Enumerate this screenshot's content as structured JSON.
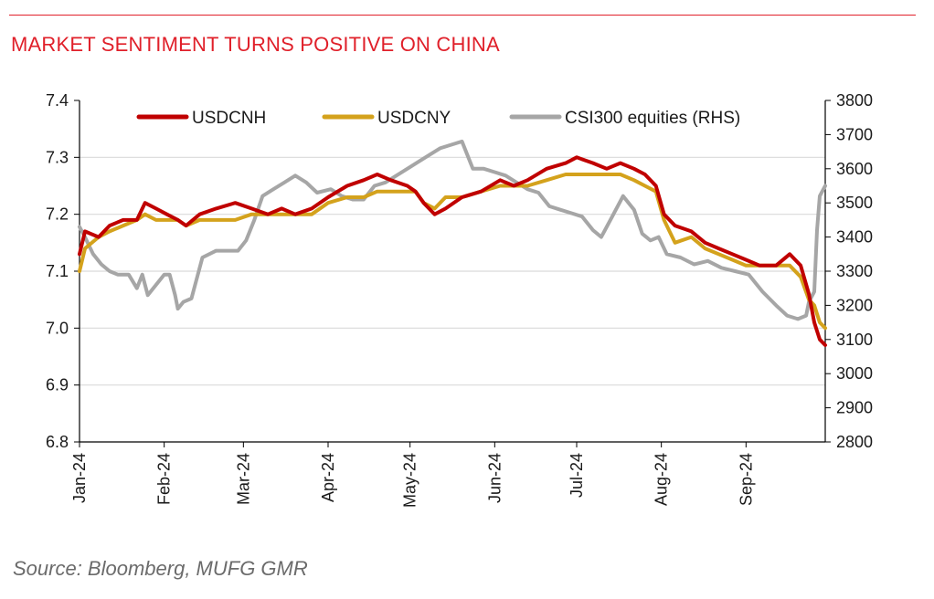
{
  "header": {
    "title": "MARKET SENTIMENT TURNS POSITIVE ON CHINA"
  },
  "footer": {
    "source": "Source: Bloomberg, MUFG GMR"
  },
  "colors": {
    "accent": "#e0202a",
    "usdcnh": "#c00000",
    "usdcny": "#d4a21c",
    "csi300": "#a6a6a6",
    "grid": "#d9d9d9"
  },
  "chart_data": {
    "type": "line",
    "title": "MARKET SENTIMENT TURNS POSITIVE ON CHINA",
    "xlabel": "",
    "ylabel": "",
    "ylim": [
      6.8,
      7.4
    ],
    "y2lim": [
      2800,
      3800
    ],
    "xlim": [
      "2024-01-01",
      "2024-09-30"
    ],
    "legend_position": "top",
    "grid": true,
    "x_tick_labels": [
      "Jan-24",
      "Feb-24",
      "Mar-24",
      "Apr-24",
      "May-24",
      "Jun-24",
      "Jul-24",
      "Aug-24",
      "Sep-24"
    ],
    "x_ticks": [
      "2024-01-01",
      "2024-02-01",
      "2024-03-01",
      "2024-04-01",
      "2024-05-01",
      "2024-06-01",
      "2024-07-01",
      "2024-08-01",
      "2024-09-01"
    ],
    "y_tick_labels": [
      "7.4",
      "7.3",
      "7.2",
      "7.1",
      "7.0",
      "6.9",
      "6.8"
    ],
    "y2_tick_labels": [
      "3800",
      "3700",
      "3600",
      "3500",
      "3400",
      "3300",
      "3200",
      "3100",
      "3000",
      "2900",
      "2800"
    ],
    "series": [
      {
        "name": "USDCNH",
        "axis": "left",
        "color": "#c00000",
        "points": [
          [
            "2024-01-01",
            7.13
          ],
          [
            "2024-01-03",
            7.17
          ],
          [
            "2024-01-08",
            7.16
          ],
          [
            "2024-01-12",
            7.18
          ],
          [
            "2024-01-17",
            7.19
          ],
          [
            "2024-01-22",
            7.19
          ],
          [
            "2024-01-25",
            7.22
          ],
          [
            "2024-01-29",
            7.21
          ],
          [
            "2024-02-02",
            7.2
          ],
          [
            "2024-02-06",
            7.19
          ],
          [
            "2024-02-09",
            7.18
          ],
          [
            "2024-02-14",
            7.2
          ],
          [
            "2024-02-20",
            7.21
          ],
          [
            "2024-02-27",
            7.22
          ],
          [
            "2024-03-04",
            7.21
          ],
          [
            "2024-03-10",
            7.2
          ],
          [
            "2024-03-15",
            7.21
          ],
          [
            "2024-03-20",
            7.2
          ],
          [
            "2024-03-26",
            7.21
          ],
          [
            "2024-04-01",
            7.23
          ],
          [
            "2024-04-08",
            7.25
          ],
          [
            "2024-04-14",
            7.26
          ],
          [
            "2024-04-19",
            7.27
          ],
          [
            "2024-04-24",
            7.26
          ],
          [
            "2024-04-30",
            7.25
          ],
          [
            "2024-05-03",
            7.24
          ],
          [
            "2024-05-06",
            7.22
          ],
          [
            "2024-05-10",
            7.2
          ],
          [
            "2024-05-14",
            7.21
          ],
          [
            "2024-05-20",
            7.23
          ],
          [
            "2024-05-27",
            7.24
          ],
          [
            "2024-06-03",
            7.26
          ],
          [
            "2024-06-08",
            7.25
          ],
          [
            "2024-06-13",
            7.26
          ],
          [
            "2024-06-20",
            7.28
          ],
          [
            "2024-06-27",
            7.29
          ],
          [
            "2024-07-01",
            7.3
          ],
          [
            "2024-07-07",
            7.29
          ],
          [
            "2024-07-12",
            7.28
          ],
          [
            "2024-07-17",
            7.29
          ],
          [
            "2024-07-22",
            7.28
          ],
          [
            "2024-07-26",
            7.27
          ],
          [
            "2024-07-30",
            7.25
          ],
          [
            "2024-08-02",
            7.2
          ],
          [
            "2024-08-06",
            7.18
          ],
          [
            "2024-08-12",
            7.17
          ],
          [
            "2024-08-17",
            7.15
          ],
          [
            "2024-08-22",
            7.14
          ],
          [
            "2024-08-27",
            7.13
          ],
          [
            "2024-09-01",
            7.12
          ],
          [
            "2024-09-06",
            7.11
          ],
          [
            "2024-09-12",
            7.11
          ],
          [
            "2024-09-17",
            7.13
          ],
          [
            "2024-09-21",
            7.11
          ],
          [
            "2024-09-24",
            7.06
          ],
          [
            "2024-09-26",
            7.01
          ],
          [
            "2024-09-28",
            6.98
          ],
          [
            "2024-09-30",
            6.97
          ]
        ]
      },
      {
        "name": "USDCNY",
        "axis": "left",
        "color": "#d4a21c",
        "points": [
          [
            "2024-01-01",
            7.1
          ],
          [
            "2024-01-03",
            7.14
          ],
          [
            "2024-01-08",
            7.16
          ],
          [
            "2024-01-12",
            7.17
          ],
          [
            "2024-01-17",
            7.18
          ],
          [
            "2024-01-22",
            7.19
          ],
          [
            "2024-01-25",
            7.2
          ],
          [
            "2024-01-29",
            7.19
          ],
          [
            "2024-02-02",
            7.19
          ],
          [
            "2024-02-06",
            7.19
          ],
          [
            "2024-02-09",
            7.18
          ],
          [
            "2024-02-14",
            7.19
          ],
          [
            "2024-02-20",
            7.19
          ],
          [
            "2024-02-27",
            7.19
          ],
          [
            "2024-03-04",
            7.2
          ],
          [
            "2024-03-10",
            7.2
          ],
          [
            "2024-03-15",
            7.2
          ],
          [
            "2024-03-20",
            7.2
          ],
          [
            "2024-03-26",
            7.2
          ],
          [
            "2024-04-01",
            7.22
          ],
          [
            "2024-04-08",
            7.23
          ],
          [
            "2024-04-14",
            7.23
          ],
          [
            "2024-04-19",
            7.24
          ],
          [
            "2024-04-24",
            7.24
          ],
          [
            "2024-04-30",
            7.24
          ],
          [
            "2024-05-03",
            7.24
          ],
          [
            "2024-05-06",
            7.22
          ],
          [
            "2024-05-10",
            7.21
          ],
          [
            "2024-05-14",
            7.23
          ],
          [
            "2024-05-20",
            7.23
          ],
          [
            "2024-05-27",
            7.24
          ],
          [
            "2024-06-03",
            7.25
          ],
          [
            "2024-06-08",
            7.25
          ],
          [
            "2024-06-13",
            7.25
          ],
          [
            "2024-06-20",
            7.26
          ],
          [
            "2024-06-27",
            7.27
          ],
          [
            "2024-07-01",
            7.27
          ],
          [
            "2024-07-07",
            7.27
          ],
          [
            "2024-07-12",
            7.27
          ],
          [
            "2024-07-17",
            7.27
          ],
          [
            "2024-07-22",
            7.26
          ],
          [
            "2024-07-26",
            7.25
          ],
          [
            "2024-07-30",
            7.24
          ],
          [
            "2024-08-02",
            7.19
          ],
          [
            "2024-08-06",
            7.15
          ],
          [
            "2024-08-12",
            7.16
          ],
          [
            "2024-08-17",
            7.14
          ],
          [
            "2024-08-22",
            7.13
          ],
          [
            "2024-08-27",
            7.12
          ],
          [
            "2024-09-01",
            7.11
          ],
          [
            "2024-09-06",
            7.11
          ],
          [
            "2024-09-12",
            7.11
          ],
          [
            "2024-09-17",
            7.11
          ],
          [
            "2024-09-21",
            7.09
          ],
          [
            "2024-09-24",
            7.05
          ],
          [
            "2024-09-26",
            7.04
          ],
          [
            "2024-09-28",
            7.01
          ],
          [
            "2024-09-30",
            7.0
          ]
        ]
      },
      {
        "name": "CSI300 equities (RHS)",
        "axis": "right",
        "color": "#a6a6a6",
        "points": [
          [
            "2024-01-01",
            3430
          ],
          [
            "2024-01-03",
            3400
          ],
          [
            "2024-01-06",
            3350
          ],
          [
            "2024-01-09",
            3320
          ],
          [
            "2024-01-12",
            3300
          ],
          [
            "2024-01-15",
            3290
          ],
          [
            "2024-01-19",
            3290
          ],
          [
            "2024-01-22",
            3250
          ],
          [
            "2024-01-24",
            3290
          ],
          [
            "2024-01-26",
            3230
          ],
          [
            "2024-01-29",
            3260
          ],
          [
            "2024-02-01",
            3290
          ],
          [
            "2024-02-03",
            3290
          ],
          [
            "2024-02-05",
            3230
          ],
          [
            "2024-02-06",
            3190
          ],
          [
            "2024-02-08",
            3210
          ],
          [
            "2024-02-11",
            3220
          ],
          [
            "2024-02-15",
            3340
          ],
          [
            "2024-02-20",
            3360
          ],
          [
            "2024-02-24",
            3360
          ],
          [
            "2024-02-28",
            3360
          ],
          [
            "2024-03-02",
            3390
          ],
          [
            "2024-03-05",
            3450
          ],
          [
            "2024-03-08",
            3520
          ],
          [
            "2024-03-12",
            3540
          ],
          [
            "2024-03-16",
            3560
          ],
          [
            "2024-03-20",
            3580
          ],
          [
            "2024-03-24",
            3560
          ],
          [
            "2024-03-28",
            3530
          ],
          [
            "2024-04-02",
            3540
          ],
          [
            "2024-04-06",
            3520
          ],
          [
            "2024-04-10",
            3510
          ],
          [
            "2024-04-14",
            3510
          ],
          [
            "2024-04-18",
            3550
          ],
          [
            "2024-04-22",
            3560
          ],
          [
            "2024-04-26",
            3580
          ],
          [
            "2024-04-30",
            3600
          ],
          [
            "2024-05-04",
            3620
          ],
          [
            "2024-05-08",
            3640
          ],
          [
            "2024-05-12",
            3660
          ],
          [
            "2024-05-16",
            3670
          ],
          [
            "2024-05-20",
            3680
          ],
          [
            "2024-05-24",
            3600
          ],
          [
            "2024-05-28",
            3600
          ],
          [
            "2024-06-01",
            3590
          ],
          [
            "2024-06-05",
            3580
          ],
          [
            "2024-06-09",
            3560
          ],
          [
            "2024-06-13",
            3540
          ],
          [
            "2024-06-17",
            3530
          ],
          [
            "2024-06-21",
            3490
          ],
          [
            "2024-06-25",
            3480
          ],
          [
            "2024-06-29",
            3470
          ],
          [
            "2024-07-03",
            3460
          ],
          [
            "2024-07-07",
            3420
          ],
          [
            "2024-07-10",
            3400
          ],
          [
            "2024-07-14",
            3460
          ],
          [
            "2024-07-18",
            3520
          ],
          [
            "2024-07-22",
            3480
          ],
          [
            "2024-07-25",
            3410
          ],
          [
            "2024-07-28",
            3390
          ],
          [
            "2024-07-31",
            3400
          ],
          [
            "2024-08-03",
            3350
          ],
          [
            "2024-08-08",
            3340
          ],
          [
            "2024-08-13",
            3320
          ],
          [
            "2024-08-18",
            3330
          ],
          [
            "2024-08-23",
            3310
          ],
          [
            "2024-08-28",
            3300
          ],
          [
            "2024-09-02",
            3290
          ],
          [
            "2024-09-07",
            3240
          ],
          [
            "2024-09-12",
            3200
          ],
          [
            "2024-09-16",
            3170
          ],
          [
            "2024-09-20",
            3160
          ],
          [
            "2024-09-23",
            3170
          ],
          [
            "2024-09-24",
            3210
          ],
          [
            "2024-09-26",
            3240
          ],
          [
            "2024-09-27",
            3420
          ],
          [
            "2024-09-28",
            3520
          ],
          [
            "2024-09-30",
            3550
          ]
        ]
      }
    ]
  }
}
